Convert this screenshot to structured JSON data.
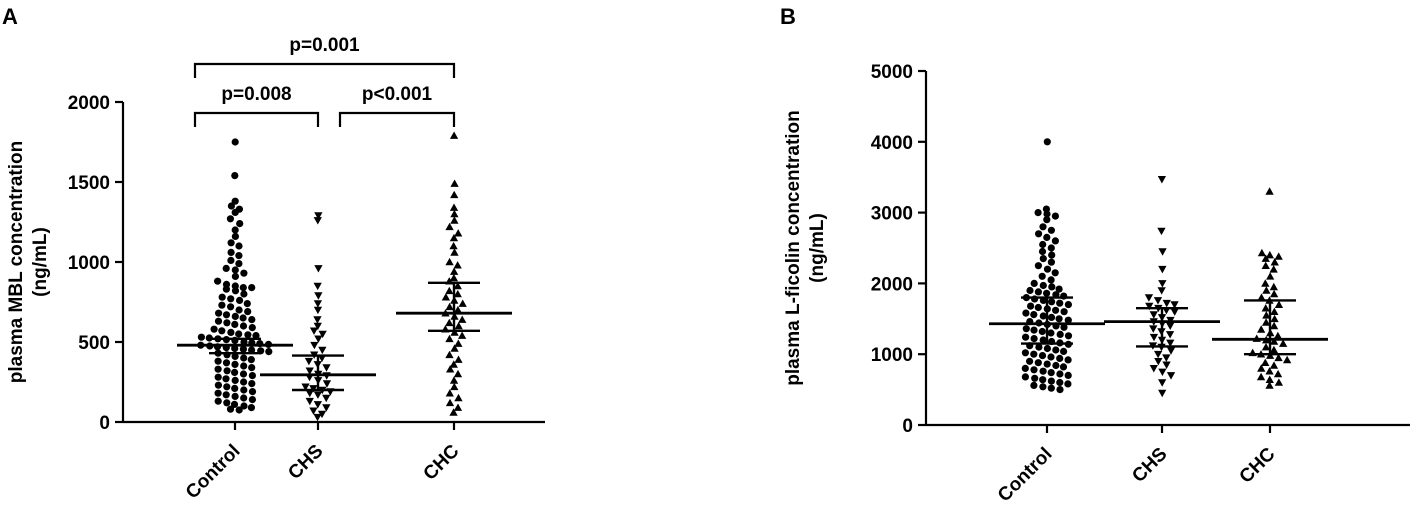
{
  "chart_data": [
    {
      "panel_label": "A",
      "type": "scatter",
      "ylabel_line1": "plasma MBL concentration",
      "ylabel_line2": "(ng/mL)",
      "ylim": [
        0,
        2000
      ],
      "yticks": [
        0,
        500,
        1000,
        1500,
        2000
      ],
      "categories": [
        "Control",
        "CHS",
        "CHC"
      ],
      "markers": [
        "circle",
        "triangle-down",
        "triangle-up"
      ],
      "summary": [
        {
          "category": "Control",
          "median": 480,
          "q1": 430,
          "q3": 520
        },
        {
          "category": "CHS",
          "median": 295,
          "q1": 200,
          "q3": 415
        },
        {
          "category": "CHC",
          "median": 680,
          "q1": 570,
          "q3": 870
        }
      ],
      "comparisons": [
        {
          "from": "Control",
          "to": "CHS",
          "label": "p=0.008",
          "level": 1
        },
        {
          "from": "CHS",
          "to": "CHC",
          "label": "p<0.001",
          "level": 1
        },
        {
          "from": "Control",
          "to": "CHC",
          "label": "p=0.001",
          "level": 2
        }
      ],
      "series": [
        {
          "category": "Control",
          "values": [
            1750,
            1540,
            1380,
            1350,
            1330,
            1310,
            1270,
            1240,
            1200,
            1160,
            1120,
            1100,
            1060,
            1040,
            1010,
            990,
            960,
            950,
            930,
            910,
            880,
            860,
            850,
            840,
            840,
            830,
            820,
            800,
            780,
            770,
            760,
            740,
            730,
            720,
            700,
            690,
            680,
            670,
            660,
            650,
            640,
            630,
            620,
            610,
            600,
            590,
            580,
            570,
            560,
            550,
            545,
            540,
            530,
            525,
            520,
            515,
            510,
            500,
            495,
            490,
            485,
            480,
            475,
            470,
            465,
            460,
            455,
            450,
            445,
            440,
            430,
            420,
            410,
            400,
            390,
            380,
            370,
            360,
            350,
            340,
            330,
            320,
            310,
            300,
            290,
            280,
            270,
            260,
            250,
            240,
            230,
            220,
            210,
            200,
            190,
            180,
            170,
            160,
            150,
            140,
            130,
            120,
            110,
            100,
            90,
            80,
            75
          ]
        },
        {
          "category": "CHS",
          "values": [
            1290,
            1260,
            960,
            850,
            790,
            740,
            700,
            640,
            600,
            570,
            550,
            520,
            480,
            450,
            420,
            400,
            380,
            360,
            340,
            320,
            300,
            290,
            280,
            260,
            240,
            220,
            210,
            200,
            190,
            180,
            170,
            150,
            130,
            110,
            90,
            70,
            50,
            30
          ]
        },
        {
          "category": "CHC",
          "values": [
            1790,
            1490,
            1420,
            1340,
            1300,
            1260,
            1220,
            1180,
            1150,
            1100,
            1060,
            1000,
            980,
            940,
            900,
            880,
            850,
            820,
            800,
            780,
            760,
            740,
            720,
            700,
            680,
            660,
            640,
            620,
            600,
            580,
            560,
            540,
            520,
            490,
            460,
            420,
            390,
            360,
            330,
            300,
            260,
            220,
            180,
            150,
            120,
            90,
            60
          ]
        }
      ]
    },
    {
      "panel_label": "B",
      "type": "scatter",
      "ylabel_line1": "plasma L-ficolin concentration",
      "ylabel_line2": "(ng/mL)",
      "ylim": [
        0,
        5000
      ],
      "yticks": [
        0,
        1000,
        2000,
        3000,
        4000,
        5000
      ],
      "categories": [
        "Control",
        "CHS",
        "CHC"
      ],
      "markers": [
        "circle",
        "triangle-down",
        "triangle-up"
      ],
      "summary": [
        {
          "category": "Control",
          "median": 1430,
          "q1": 1150,
          "q3": 1800
        },
        {
          "category": "CHS",
          "median": 1460,
          "q1": 1110,
          "q3": 1650
        },
        {
          "category": "CHC",
          "median": 1210,
          "q1": 1000,
          "q3": 1760
        }
      ],
      "series": [
        {
          "category": "Control",
          "values": [
            4000,
            3050,
            3000,
            2980,
            2950,
            2900,
            2800,
            2750,
            2700,
            2650,
            2600,
            2550,
            2500,
            2450,
            2400,
            2350,
            2300,
            2250,
            2200,
            2150,
            2100,
            2050,
            2000,
            1970,
            1950,
            1920,
            1900,
            1880,
            1860,
            1840,
            1820,
            1800,
            1780,
            1760,
            1740,
            1720,
            1700,
            1680,
            1660,
            1640,
            1620,
            1600,
            1580,
            1560,
            1540,
            1520,
            1500,
            1480,
            1460,
            1440,
            1420,
            1400,
            1380,
            1360,
            1340,
            1320,
            1300,
            1280,
            1260,
            1240,
            1220,
            1200,
            1180,
            1160,
            1140,
            1120,
            1100,
            1080,
            1060,
            1040,
            1020,
            1000,
            980,
            960,
            940,
            920,
            900,
            880,
            860,
            840,
            820,
            800,
            780,
            760,
            740,
            720,
            700,
            680,
            660,
            640,
            620,
            600,
            580,
            560,
            540,
            520,
            500
          ]
        },
        {
          "category": "CHS",
          "values": [
            3470,
            2740,
            2450,
            2200,
            2000,
            1900,
            1800,
            1760,
            1720,
            1700,
            1680,
            1650,
            1620,
            1600,
            1560,
            1520,
            1480,
            1460,
            1430,
            1400,
            1360,
            1320,
            1280,
            1240,
            1200,
            1160,
            1120,
            1100,
            1050,
            1000,
            950,
            900,
            850,
            800,
            750,
            700,
            600,
            450
          ]
        },
        {
          "category": "CHC",
          "values": [
            3300,
            2430,
            2400,
            2380,
            2350,
            2300,
            2250,
            2200,
            2100,
            2000,
            1950,
            1900,
            1850,
            1800,
            1760,
            1700,
            1650,
            1600,
            1550,
            1500,
            1450,
            1400,
            1350,
            1300,
            1260,
            1220,
            1200,
            1180,
            1150,
            1100,
            1060,
            1020,
            1000,
            980,
            950,
            920,
            880,
            840,
            800,
            760,
            720,
            680,
            640,
            600,
            560
          ]
        }
      ]
    }
  ]
}
